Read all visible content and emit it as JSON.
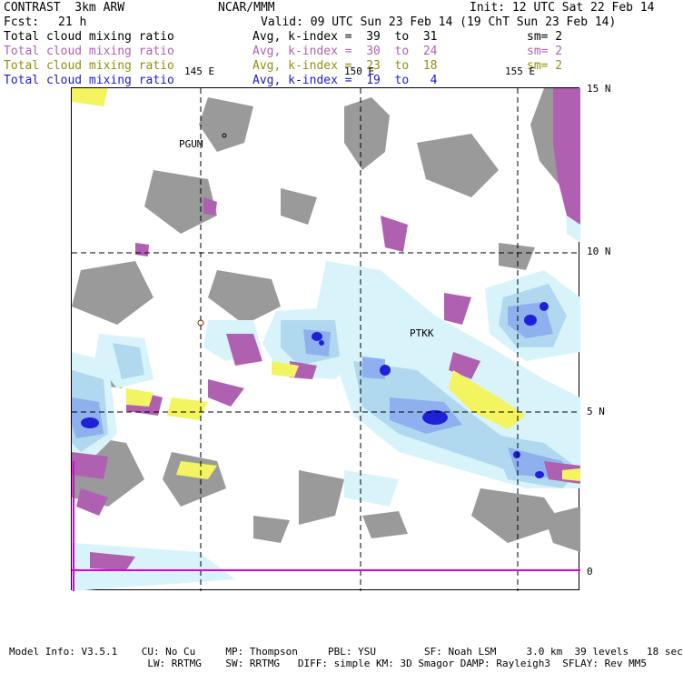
{
  "header": {
    "title_left": "CONTRAST  3km ARW",
    "title_center": "NCAR/MMM",
    "init": "Init: 12 UTC Sat 22 Feb 14",
    "fcst_label": "Fcst:",
    "fcst_value": "21 h",
    "valid": "Valid: 09 UTC Sun 23 Feb 14 (19 ChT Sun 23 Feb 14)"
  },
  "legend": [
    {
      "label": "Total cloud mixing ratio",
      "range": "Avg, k-index =  39  to  31",
      "sm": "sm= 2",
      "color": "#000000"
    },
    {
      "label": "Total cloud mixing ratio",
      "range": "Avg, k-index =  30  to  24",
      "sm": "sm= 2",
      "color": "#b060b0"
    },
    {
      "label": "Total cloud mixing ratio",
      "range": "Avg, k-index =  23  to  18",
      "sm": "sm= 2",
      "color": "#909010"
    },
    {
      "label": "Total cloud mixing ratio",
      "range": "Avg, k-index =  19  to   4",
      "sm": "",
      "color": "#1a1ad0"
    }
  ],
  "map": {
    "lon_labels": [
      "145 E",
      "150 E",
      "155 E"
    ],
    "lat_labels": [
      "15 N",
      "10 N",
      "5 N",
      "0"
    ],
    "stations": [
      "PGUM",
      "PTKK"
    ],
    "colors": {
      "gray": "#9a9a9a",
      "purple": "#b060b0",
      "yellow": "#f4f460",
      "lightcyan": "#d8f4fa",
      "lightblue": "#b0d8ef",
      "midblue": "#8fb0ee",
      "darkblue": "#2020d8",
      "magenta": "#e000e0"
    }
  },
  "footer": {
    "line1": "Model Info: V3.5.1    CU: No Cu     MP: Thompson     PBL: YSU        SF: Noah LSM     3.0 km  39 levels   18 sec",
    "line2": "                       LW: RRTMG    SW: RRTMG   DIFF: simple KM: 3D Smagor DAMP: Rayleigh3  SFLAY: Rev MM5"
  }
}
